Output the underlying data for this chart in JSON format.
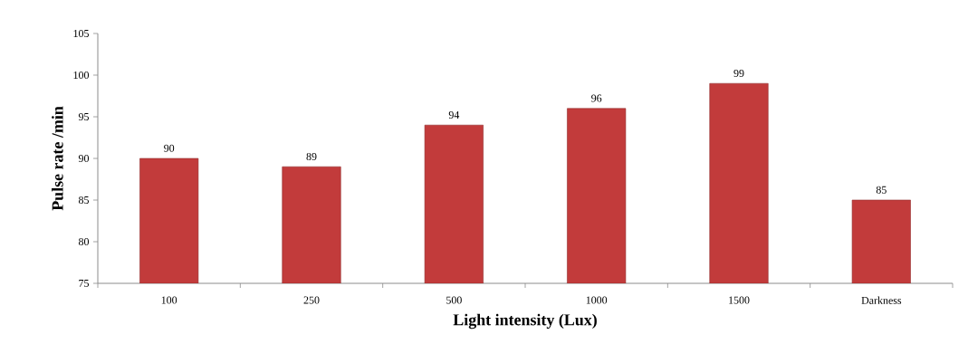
{
  "chart_data": {
    "type": "bar",
    "xlabel": "Light intensity (Lux)",
    "ylabel": "Pulse rate /min",
    "categories": [
      "100",
      "250",
      "500",
      "1000",
      "1500",
      "Darkness"
    ],
    "values": [
      90,
      89,
      94,
      96,
      99,
      85
    ],
    "color": "#c23b3b",
    "ylim": [
      75,
      105
    ],
    "yticks": [
      75,
      80,
      85,
      90,
      95,
      100,
      105
    ],
    "data_labels": true
  }
}
